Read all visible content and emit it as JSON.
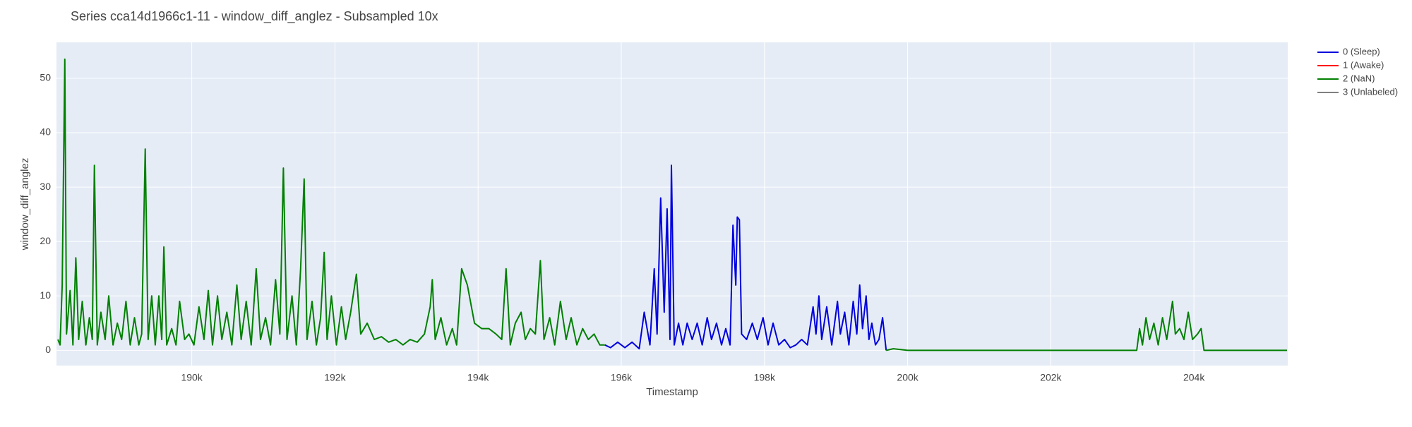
{
  "chart_data": {
    "type": "line",
    "title": "Series cca14d1966c1-11 - window_diff_anglez - Subsampled 10x",
    "x_label": "Timestamp",
    "y_label": "window_diff_anglez",
    "xlim": [
      188110,
      205310
    ],
    "ylim": [
      -2.8,
      56.6
    ],
    "xticks": [
      {
        "value": 190000,
        "label": "190k"
      },
      {
        "value": 192000,
        "label": "192k"
      },
      {
        "value": 194000,
        "label": "194k"
      },
      {
        "value": 196000,
        "label": "196k"
      },
      {
        "value": 198000,
        "label": "198k"
      },
      {
        "value": 200000,
        "label": "200k"
      },
      {
        "value": 202000,
        "label": "202k"
      },
      {
        "value": 204000,
        "label": "204k"
      }
    ],
    "yticks": [
      0,
      10,
      20,
      30,
      40,
      50
    ],
    "grid": true,
    "legend": "top-right",
    "series": [
      {
        "name": "0 (Sleep)",
        "color": "#0000dd",
        "x": [
          195770,
          195850,
          195950,
          196050,
          196150,
          196250,
          196320,
          196400,
          196460,
          196500,
          196550,
          196600,
          196640,
          196680,
          196700,
          196740,
          196800,
          196860,
          196920,
          196990,
          197060,
          197130,
          197200,
          197260,
          197330,
          197400,
          197460,
          197520,
          197560,
          197600,
          197620,
          197650,
          197680,
          197750,
          197830,
          197900,
          197980,
          198050,
          198120,
          198200,
          198280,
          198360,
          198440,
          198520,
          198600,
          198680,
          198720,
          198760,
          198800,
          198870,
          198940,
          199020,
          199060,
          199120,
          199180,
          199240,
          199290,
          199330,
          199370,
          199420,
          199460,
          199500,
          199550,
          199600,
          199650,
          199700
        ],
        "values": [
          1,
          0.5,
          1.5,
          0.5,
          1.5,
          0.3,
          7,
          1,
          15,
          3,
          28,
          7,
          26,
          2,
          34,
          1,
          5,
          1,
          5,
          2,
          5,
          1,
          6,
          2,
          5,
          1,
          4,
          1,
          23,
          12,
          24.5,
          24,
          3,
          2,
          5,
          2,
          6,
          1,
          5,
          1,
          2,
          0.5,
          1,
          2,
          1,
          8,
          3,
          10,
          2,
          8,
          1,
          9,
          3,
          7,
          1,
          9,
          3,
          12,
          4,
          10,
          2,
          5,
          1,
          2,
          6,
          0
        ]
      },
      {
        "name": "1 (Awake)",
        "color": "#ff0000",
        "x": [],
        "values": []
      },
      {
        "name": "2 (NaN)",
        "color": "#008000",
        "x": [
          188130,
          188160,
          188190,
          188226,
          188250,
          188300,
          188340,
          188380,
          188420,
          188470,
          188520,
          188570,
          188610,
          188640,
          188680,
          188730,
          188790,
          188840,
          188900,
          188960,
          189020,
          189080,
          189140,
          189200,
          189260,
          189300,
          189350,
          189390,
          189440,
          189490,
          189540,
          189580,
          189610,
          189650,
          189720,
          189780,
          189830,
          189900,
          189960,
          190030,
          190100,
          190170,
          190230,
          190290,
          190360,
          190420,
          190490,
          190560,
          190630,
          190690,
          190760,
          190830,
          190900,
          190960,
          191030,
          191100,
          191170,
          191230,
          191280,
          191330,
          191400,
          191460,
          191520,
          191570,
          191610,
          191680,
          191740,
          191800,
          191850,
          191890,
          191950,
          192020,
          192090,
          192150,
          192220,
          192300,
          192360,
          192450,
          192550,
          192650,
          192750,
          192850,
          192950,
          193050,
          193150,
          193250,
          193330,
          193360,
          193400,
          193480,
          193560,
          193640,
          193700,
          193770,
          193850,
          193950,
          194050,
          194150,
          194250,
          194330,
          194390,
          194450,
          194520,
          194600,
          194660,
          194730,
          194800,
          194870,
          194920,
          195000,
          195070,
          195150,
          195230,
          195300,
          195380,
          195460,
          195540,
          195620,
          195700,
          195770,
          197700,
          199700,
          199800,
          200000,
          201000,
          203000,
          203200,
          203240,
          203280,
          203330,
          203380,
          203440,
          203500,
          203560,
          203620,
          203700,
          203740,
          203800,
          203860,
          203920,
          203980,
          204050,
          204100,
          204140,
          205300
        ],
        "values": [
          2,
          1,
          12,
          53.5,
          3,
          11,
          1,
          17,
          2,
          9,
          1,
          6,
          2,
          34,
          1,
          7,
          2,
          10,
          1,
          5,
          2,
          9,
          1,
          6,
          1,
          3,
          37,
          2,
          10,
          1,
          10,
          2,
          19,
          1,
          4,
          1,
          9,
          2,
          3,
          1,
          8,
          2,
          11,
          1,
          10,
          2,
          7,
          1,
          12,
          2,
          9,
          1,
          15,
          2,
          6,
          1,
          13,
          3,
          33.5,
          2,
          10,
          1,
          15,
          31.5,
          2,
          9,
          1,
          6,
          18,
          2,
          10,
          1,
          8,
          2,
          7,
          14,
          3,
          5,
          2,
          2.5,
          1.5,
          2,
          1,
          2,
          1.5,
          3,
          8,
          13,
          2,
          6,
          1,
          4,
          1,
          15,
          12,
          5,
          4,
          4,
          3,
          2,
          15,
          1,
          5,
          7,
          2,
          4,
          3,
          16.5,
          2,
          6,
          1,
          9,
          2,
          6,
          1,
          4,
          2,
          3,
          1,
          1,
          null,
          0,
          0.3,
          0,
          0,
          0,
          0,
          4,
          1,
          6,
          2,
          5,
          1,
          6,
          2,
          9,
          3,
          4,
          2,
          7,
          2,
          3,
          4,
          0,
          0
        ]
      },
      {
        "name": "3 (Unlabeled)",
        "color": "#808080",
        "x": [],
        "values": []
      }
    ]
  }
}
